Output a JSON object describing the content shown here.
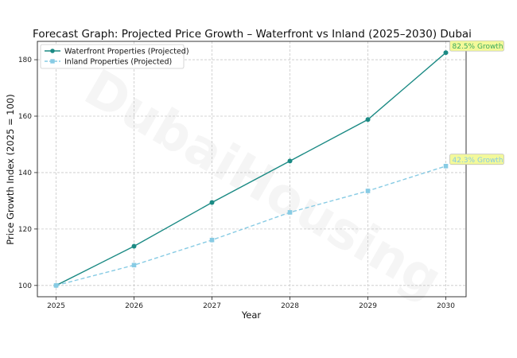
{
  "chart_data": {
    "type": "line",
    "title": "Forecast Graph: Projected Price Growth – Waterfront vs Inland (2025–2030) Dubai",
    "xlabel": "Year",
    "ylabel": "Price Growth Index (2025 = 100)",
    "x": [
      2025,
      2026,
      2027,
      2028,
      2029,
      2030
    ],
    "xlim": [
      2024.76,
      2030.26
    ],
    "ylim": [
      96,
      186.5
    ],
    "yticks": [
      100,
      120,
      140,
      160,
      180
    ],
    "grid": true,
    "legend_position": "top-left",
    "watermark": "DubaiHousing",
    "series": [
      {
        "name": "Waterfront Properties (Projected)",
        "values": [
          100,
          113.9,
          129.4,
          144.1,
          158.8,
          182.5
        ],
        "color": "#1b8a84",
        "line_style": "solid",
        "marker": "circle"
      },
      {
        "name": "Inland Properties (Projected)",
        "values": [
          100,
          107.2,
          116.1,
          125.9,
          133.5,
          142.3
        ],
        "color": "#87cbe4",
        "line_style": "dashed",
        "marker": "square"
      }
    ],
    "annotations": [
      {
        "text": "82.5% Growth",
        "series": 0,
        "x": 2030,
        "y": 182.5,
        "text_color": "#3aaa5c",
        "box_color": "#f3f99a"
      },
      {
        "text": "42.3% Growth",
        "series": 1,
        "x": 2030,
        "y": 142.3,
        "text_color": "#87cbe4",
        "box_color": "#f3f99a"
      }
    ]
  }
}
